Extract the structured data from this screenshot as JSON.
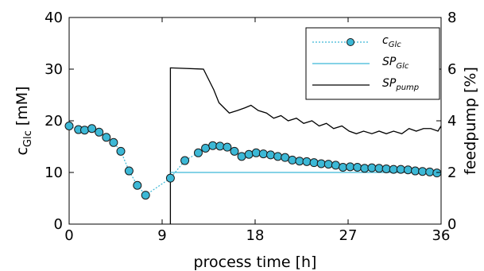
{
  "chart_data": {
    "type": "line",
    "xlabel": "process time [h]",
    "ylabel_main": "c",
    "ylabel_sub": "Glc",
    "ylabel_unit": "[mM]",
    "y2label": "feedpump [%]",
    "xlim": [
      0,
      36
    ],
    "ylim": [
      0,
      40
    ],
    "y2lim": [
      0,
      8
    ],
    "xticks": [
      0,
      9,
      18,
      27,
      36
    ],
    "yticks": [
      0,
      10,
      20,
      30,
      40
    ],
    "y2ticks": [
      0,
      2,
      4,
      6,
      8
    ],
    "legend_position": "top-right",
    "series": [
      {
        "name_main": "c",
        "name_sub": "Glc",
        "style": "dotted-markers",
        "color": "#3cb8d6",
        "marker_fill": "#3cb8d6",
        "marker_edge": "#1a1a1a",
        "x": [
          0.0,
          0.9,
          1.5,
          2.2,
          2.9,
          3.6,
          4.3,
          5.0,
          5.8,
          6.6,
          7.4,
          9.8,
          11.2,
          12.5,
          13.2,
          13.9,
          14.6,
          15.3,
          16.0,
          16.7,
          17.4,
          18.1,
          18.8,
          19.5,
          20.2,
          20.9,
          21.6,
          22.3,
          23.0,
          23.7,
          24.4,
          25.1,
          25.8,
          26.5,
          27.2,
          27.9,
          28.6,
          29.3,
          30.0,
          30.7,
          31.4,
          32.1,
          32.8,
          33.5,
          34.2,
          34.9,
          35.6
        ],
        "y": [
          19.0,
          18.3,
          18.2,
          18.5,
          17.8,
          16.8,
          15.8,
          14.1,
          10.3,
          7.5,
          5.6,
          8.9,
          12.3,
          13.8,
          14.7,
          15.2,
          15.1,
          14.9,
          14.1,
          13.1,
          13.5,
          13.8,
          13.6,
          13.4,
          13.1,
          12.9,
          12.4,
          12.2,
          12.1,
          11.9,
          11.7,
          11.6,
          11.4,
          11.0,
          11.1,
          11.0,
          10.8,
          10.9,
          10.8,
          10.7,
          10.6,
          10.6,
          10.5,
          10.3,
          10.2,
          10.1,
          9.9
        ]
      },
      {
        "name_main": "SP",
        "name_sub": "Glc",
        "style": "line",
        "color": "#3cb8d6",
        "x": [
          9.8,
          36
        ],
        "y": [
          10,
          10
        ]
      },
      {
        "name_main": "SP",
        "name_sub": "pump",
        "style": "step",
        "color": "#000000",
        "axis": "right",
        "x": [
          9.8,
          9.8,
          13.0,
          14.0,
          14.5,
          15.0,
          15.5,
          16.3,
          17.0,
          17.6,
          18.3,
          19.1,
          19.8,
          20.5,
          21.2,
          22.0,
          22.7,
          23.5,
          24.2,
          24.9,
          25.6,
          26.4,
          27.1,
          27.8,
          28.5,
          29.3,
          30.0,
          30.7,
          31.4,
          32.2,
          32.9,
          33.6,
          34.3,
          35.0,
          35.7,
          36.0
        ],
        "y": [
          0,
          6.05,
          6.0,
          5.2,
          4.7,
          4.5,
          4.3,
          4.4,
          4.5,
          4.6,
          4.4,
          4.3,
          4.1,
          4.2,
          4.0,
          4.1,
          3.9,
          4.0,
          3.8,
          3.9,
          3.7,
          3.8,
          3.6,
          3.5,
          3.6,
          3.5,
          3.6,
          3.5,
          3.6,
          3.5,
          3.7,
          3.6,
          3.7,
          3.7,
          3.6,
          3.8
        ]
      }
    ]
  }
}
